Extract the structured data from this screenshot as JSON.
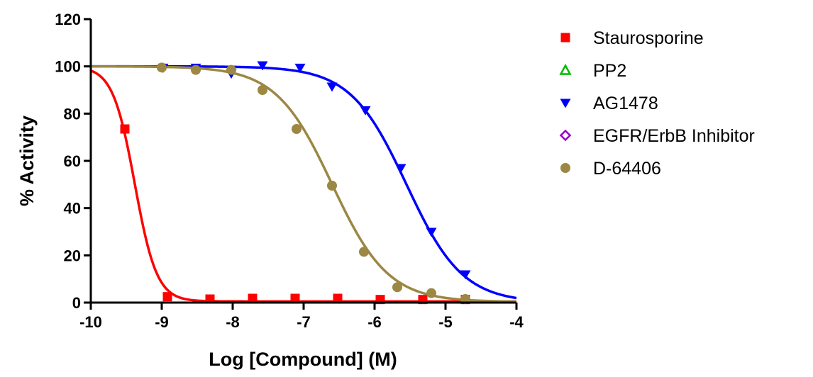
{
  "chart_data": {
    "type": "scatter",
    "title": "",
    "xlabel": "Log [Compound] (M)",
    "ylabel": "% Activity",
    "xlim": [
      -10,
      -4
    ],
    "ylim": [
      0,
      120
    ],
    "x_ticks": [
      -10,
      -9,
      -8,
      -7,
      -6,
      -5,
      -4
    ],
    "y_ticks": [
      0,
      20,
      40,
      60,
      80,
      100,
      120
    ],
    "x_tick_labels": [
      "-10",
      "-9",
      "-8",
      "-7",
      "-6",
      "-5",
      "-4"
    ],
    "y_tick_labels": [
      "0",
      "20",
      "40",
      "60",
      "80",
      "100",
      "120"
    ],
    "grid": false,
    "legend_position": "right",
    "series": [
      {
        "name": "Staurosporine",
        "marker": "square",
        "color": "#ff0000",
        "x": [
          -9.52,
          -8.92,
          -8.32,
          -7.72,
          -7.12,
          -6.52,
          -5.92,
          -5.32,
          -4.72
        ],
        "y": [
          73.5,
          2.5,
          1.5,
          1.8,
          1.8,
          1.8,
          1.3,
          1.3,
          1.3
        ],
        "fit": {
          "top": 100,
          "bottom": 0.5,
          "logIC50": -9.38,
          "hill": 2.8
        }
      },
      {
        "name": "PP2",
        "marker": "triangle-up-open",
        "color": "#00bb00",
        "x": [],
        "y": []
      },
      {
        "name": "AG1478",
        "marker": "triangle-down",
        "color": "#0000ff",
        "x": [
          -8.98,
          -8.52,
          -8.02,
          -7.58,
          -7.05,
          -6.6,
          -6.13,
          -5.63,
          -5.2,
          -4.72
        ],
        "y": [
          99.5,
          99.5,
          97,
          100.5,
          99.5,
          91.5,
          81.5,
          57,
          30,
          12
        ],
        "fit": {
          "top": 100,
          "bottom": 0,
          "logIC50": -5.55,
          "hill": 1.1
        }
      },
      {
        "name": "EGFR/ErbB Inhibitor",
        "marker": "diamond-open",
        "color": "#9a00cc",
        "x": [],
        "y": []
      },
      {
        "name": "D-64406",
        "marker": "circle",
        "color": "#9c8743",
        "x": [
          -9.0,
          -8.52,
          -8.02,
          -7.58,
          -7.1,
          -6.6,
          -6.15,
          -5.68,
          -5.2,
          -4.72
        ],
        "y": [
          99.5,
          98.5,
          98.5,
          90,
          73.5,
          49.5,
          21.5,
          6.5,
          4,
          1.5
        ],
        "fit": {
          "top": 100,
          "bottom": 0.3,
          "logIC50": -6.6,
          "hill": 1.1
        }
      }
    ]
  }
}
